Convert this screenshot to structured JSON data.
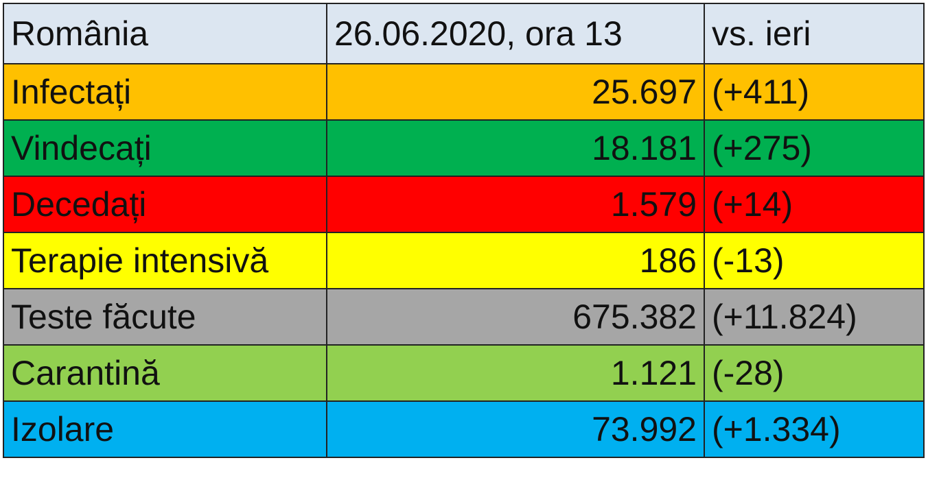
{
  "table": {
    "header": [
      "România",
      "26.06.2020, ora 13",
      "vs. ieri"
    ],
    "rows": [
      [
        "Infectați",
        "25.697",
        "(+411)"
      ],
      [
        "Vindecați",
        "18.181",
        "(+275)"
      ],
      [
        "Decedați",
        "1.579",
        "(+14)"
      ],
      [
        "Terapie intensivă",
        "186",
        "(-13)"
      ],
      [
        "Teste făcute",
        "675.382",
        "(+11.824)"
      ],
      [
        "Carantină",
        "1.121",
        "(-28)"
      ],
      [
        "Izolare",
        "73.992",
        "(+1.334)"
      ]
    ]
  }
}
